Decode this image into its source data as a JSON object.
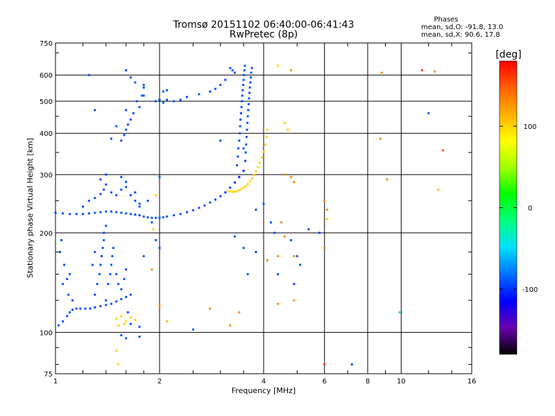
{
  "header": {
    "title": "Tromsø 20151102 06:40:00-06:41:43",
    "subtitle": "RwPretec (8p)"
  },
  "stats": {
    "heading": "Phases",
    "line_o": "mean, sd,O: -91.8, 13.0",
    "line_x": "mean, sd,X:  90.6, 17.8"
  },
  "colorbar": {
    "label": "[deg]",
    "ticks": [
      "100",
      "0",
      "-100"
    ],
    "tick_values": [
      100,
      0,
      -100
    ],
    "range": [
      -180,
      180
    ],
    "colormap": [
      "#000000",
      "#6a00b0",
      "#0000ff",
      "#0070ff",
      "#00e0ff",
      "#00ff80",
      "#00ff00",
      "#a0ff00",
      "#ffff00",
      "#ffb000",
      "#ff6000",
      "#ff0000"
    ]
  },
  "chart_data": {
    "type": "scatter",
    "title": "Tromsø 20151102 06:40:00-06:41:43",
    "subtitle": "RwPretec (8p)",
    "xlabel": "Frequency [MHz]",
    "ylabel": "Stationary phase Virtual Height [km]",
    "x_scale": "log",
    "y_scale": "log",
    "xlim": [
      1,
      16
    ],
    "ylim": [
      75,
      750
    ],
    "x_ticks": [
      1,
      2,
      4,
      6,
      8,
      10,
      16
    ],
    "x_tick_labels": [
      "1",
      "2",
      "4",
      "6",
      "8",
      "10",
      "16"
    ],
    "x_grid": [
      2,
      4,
      6,
      8,
      10
    ],
    "y_ticks": [
      75,
      100,
      200,
      300,
      400,
      500,
      600,
      750
    ],
    "y_tick_labels": [
      "75",
      "100",
      "200",
      "300",
      "400",
      "500",
      "600",
      "750"
    ],
    "y_grid": [
      100,
      200,
      300,
      400,
      500,
      600
    ],
    "grid": true,
    "color_dimension": "phase [deg]",
    "points": [
      [
        1.0,
        230,
        -95
      ],
      [
        1.05,
        229,
        -92
      ],
      [
        1.1,
        228,
        -90
      ],
      [
        1.15,
        228,
        -93
      ],
      [
        1.2,
        228,
        -91
      ],
      [
        1.25,
        229,
        -94
      ],
      [
        1.3,
        230,
        -90
      ],
      [
        1.35,
        231,
        -92
      ],
      [
        1.4,
        232,
        -91
      ],
      [
        1.45,
        232,
        -93
      ],
      [
        1.5,
        231,
        -92
      ],
      [
        1.55,
        230,
        -94
      ],
      [
        1.6,
        229,
        -90
      ],
      [
        1.65,
        228,
        -91
      ],
      [
        1.7,
        227,
        -92
      ],
      [
        1.75,
        226,
        -93
      ],
      [
        1.8,
        224,
        -91
      ],
      [
        1.85,
        223,
        -90
      ],
      [
        1.9,
        222,
        -92
      ],
      [
        1.95,
        222,
        -91
      ],
      [
        2.0,
        222,
        -90
      ],
      [
        2.05,
        223,
        -92
      ],
      [
        2.1,
        224,
        -91
      ],
      [
        2.2,
        226,
        -90
      ],
      [
        2.3,
        228,
        -92
      ],
      [
        2.4,
        231,
        -91
      ],
      [
        2.5,
        234,
        -93
      ],
      [
        2.6,
        238,
        -92
      ],
      [
        2.7,
        242,
        -90
      ],
      [
        2.8,
        247,
        -91
      ],
      [
        2.9,
        252,
        -94
      ],
      [
        3.0,
        258,
        -95
      ],
      [
        3.1,
        265,
        -98
      ],
      [
        3.2,
        274,
        -100
      ],
      [
        3.3,
        284,
        -105
      ],
      [
        3.4,
        295,
        -110
      ],
      [
        3.5,
        308,
        -104
      ],
      [
        3.15,
        268,
        100
      ],
      [
        3.2,
        267,
        102
      ],
      [
        3.25,
        266,
        98
      ],
      [
        3.3,
        266,
        101
      ],
      [
        3.35,
        267,
        99
      ],
      [
        3.4,
        269,
        103
      ],
      [
        3.45,
        271,
        100
      ],
      [
        3.5,
        274,
        102
      ],
      [
        3.55,
        277,
        98
      ],
      [
        3.6,
        281,
        101
      ],
      [
        3.65,
        286,
        99
      ],
      [
        3.7,
        292,
        103
      ],
      [
        3.75,
        299,
        100
      ],
      [
        3.8,
        307,
        102
      ],
      [
        3.85,
        316,
        98
      ],
      [
        3.9,
        326,
        101
      ],
      [
        3.95,
        338,
        99
      ],
      [
        4.0,
        352,
        103
      ],
      [
        4.05,
        370,
        100
      ],
      [
        4.08,
        390,
        102
      ],
      [
        4.1,
        410,
        98
      ],
      [
        3.35,
        320,
        -90
      ],
      [
        3.37,
        340,
        -92
      ],
      [
        3.38,
        360,
        -91
      ],
      [
        3.4,
        380,
        -93
      ],
      [
        3.41,
        400,
        -90
      ],
      [
        3.42,
        420,
        -92
      ],
      [
        3.43,
        440,
        -91
      ],
      [
        3.44,
        460,
        -94
      ],
      [
        3.45,
        480,
        -90
      ],
      [
        3.46,
        500,
        -92
      ],
      [
        3.47,
        520,
        -91
      ],
      [
        3.48,
        540,
        -93
      ],
      [
        3.49,
        560,
        -90
      ],
      [
        3.5,
        580,
        -92
      ],
      [
        3.51,
        600,
        -91
      ],
      [
        3.52,
        620,
        -93
      ],
      [
        3.53,
        640,
        -90
      ],
      [
        3.54,
        330,
        -95
      ],
      [
        3.55,
        350,
        -92
      ],
      [
        3.56,
        370,
        -90
      ],
      [
        3.57,
        390,
        -93
      ],
      [
        3.58,
        410,
        -91
      ],
      [
        3.59,
        430,
        -92
      ],
      [
        3.6,
        450,
        -90
      ],
      [
        3.61,
        470,
        -94
      ],
      [
        3.62,
        490,
        -91
      ],
      [
        3.63,
        510,
        -92
      ],
      [
        3.64,
        530,
        -93
      ],
      [
        3.65,
        550,
        -90
      ],
      [
        3.66,
        570,
        -91
      ],
      [
        3.67,
        590,
        -92
      ],
      [
        3.68,
        610,
        -90
      ],
      [
        3.7,
        630,
        -93
      ],
      [
        3.2,
        630,
        -92
      ],
      [
        3.25,
        620,
        -90
      ],
      [
        3.3,
        610,
        -93
      ],
      [
        3.0,
        560,
        -91
      ],
      [
        3.1,
        580,
        -92
      ],
      [
        2.9,
        545,
        -90
      ],
      [
        2.8,
        535,
        -93
      ],
      [
        2.6,
        525,
        -91
      ],
      [
        2.4,
        515,
        -92
      ],
      [
        2.3,
        505,
        -90
      ],
      [
        2.2,
        500,
        -88
      ],
      [
        2.1,
        505,
        -92
      ],
      [
        1.95,
        500,
        -91
      ],
      [
        2.0,
        505,
        -93
      ],
      [
        2.05,
        495,
        -90
      ],
      [
        2.05,
        535,
        -92
      ],
      [
        2.1,
        540,
        -94
      ],
      [
        1.8,
        520,
        -90
      ],
      [
        1.02,
        105,
        -92
      ],
      [
        1.05,
        108,
        -91
      ],
      [
        1.08,
        112,
        -93
      ],
      [
        1.1,
        115,
        -90
      ],
      [
        1.12,
        117,
        -92
      ],
      [
        1.15,
        118,
        -91
      ],
      [
        1.18,
        118,
        -90
      ],
      [
        1.22,
        118,
        -93
      ],
      [
        1.26,
        118,
        -91
      ],
      [
        1.3,
        119,
        -92
      ],
      [
        1.35,
        120,
        -90
      ],
      [
        1.4,
        121,
        -92
      ],
      [
        1.45,
        122,
        -91
      ],
      [
        1.5,
        124,
        -93
      ],
      [
        1.55,
        126,
        -90
      ],
      [
        1.6,
        128,
        -92
      ],
      [
        1.05,
        140,
        -91
      ],
      [
        1.08,
        145,
        -92
      ],
      [
        1.1,
        150,
        -90
      ],
      [
        1.06,
        160,
        -93
      ],
      [
        1.03,
        175,
        -91
      ],
      [
        1.04,
        190,
        -92
      ],
      [
        1.09,
        130,
        -90
      ],
      [
        1.12,
        125,
        -93
      ],
      [
        1.3,
        130,
        -92
      ],
      [
        1.32,
        140,
        -91
      ],
      [
        1.34,
        150,
        -90
      ],
      [
        1.35,
        160,
        -92
      ],
      [
        1.36,
        170,
        -93
      ],
      [
        1.37,
        180,
        -91
      ],
      [
        1.38,
        190,
        -90
      ],
      [
        1.38,
        200,
        -92
      ],
      [
        1.4,
        210,
        -91
      ],
      [
        1.42,
        140,
        -93
      ],
      [
        1.44,
        150,
        -92
      ],
      [
        1.45,
        160,
        -91
      ],
      [
        1.46,
        170,
        -90
      ],
      [
        1.47,
        180,
        -92
      ],
      [
        1.5,
        150,
        -91
      ],
      [
        1.52,
        140,
        -93
      ],
      [
        1.55,
        135,
        -92
      ],
      [
        1.58,
        145,
        -90
      ],
      [
        1.6,
        155,
        -91
      ],
      [
        1.65,
        130,
        -92
      ],
      [
        1.4,
        125,
        -90
      ],
      [
        1.28,
        160,
        -93
      ],
      [
        1.3,
        175,
        -91
      ],
      [
        1.2,
        240,
        -92
      ],
      [
        1.25,
        250,
        -91
      ],
      [
        1.3,
        255,
        -90
      ],
      [
        1.35,
        262,
        -93
      ],
      [
        1.38,
        270,
        -91
      ],
      [
        1.4,
        280,
        -92
      ],
      [
        1.45,
        265,
        -90
      ],
      [
        1.5,
        260,
        -91
      ],
      [
        1.55,
        270,
        -92
      ],
      [
        1.6,
        275,
        -90
      ],
      [
        1.65,
        260,
        -93
      ],
      [
        1.7,
        250,
        -91
      ],
      [
        1.75,
        245,
        -92
      ],
      [
        1.35,
        290,
        -92
      ],
      [
        1.4,
        300,
        -90
      ],
      [
        1.55,
        295,
        -91
      ],
      [
        1.6,
        285,
        -93
      ],
      [
        1.7,
        265,
        -91
      ],
      [
        1.55,
        380,
        -91
      ],
      [
        1.58,
        395,
        -92
      ],
      [
        1.6,
        410,
        -90
      ],
      [
        1.62,
        425,
        -93
      ],
      [
        1.65,
        440,
        -91
      ],
      [
        1.68,
        460,
        -92
      ],
      [
        1.6,
        470,
        -90
      ],
      [
        1.75,
        480,
        -92
      ],
      [
        1.72,
        500,
        -91
      ],
      [
        1.78,
        520,
        -90
      ],
      [
        1.8,
        550,
        -93
      ],
      [
        1.7,
        570,
        -91
      ],
      [
        1.65,
        590,
        -92
      ],
      [
        1.6,
        620,
        -90
      ],
      [
        1.3,
        470,
        -92
      ],
      [
        1.25,
        600,
        -91
      ],
      [
        1.5,
        420,
        -90
      ],
      [
        1.45,
        385,
        -93
      ],
      [
        1.8,
        560,
        -91
      ],
      [
        1.5,
        110,
        100
      ],
      [
        1.55,
        112,
        102
      ],
      [
        1.6,
        108,
        98
      ],
      [
        1.65,
        111,
        101
      ],
      [
        1.7,
        109,
        99
      ],
      [
        1.52,
        105,
        103
      ],
      [
        1.58,
        106,
        100
      ],
      [
        1.65,
        106,
        -90
      ],
      [
        1.75,
        104,
        -92
      ],
      [
        1.55,
        98,
        -91
      ],
      [
        1.6,
        96,
        -90
      ],
      [
        1.75,
        97,
        -93
      ],
      [
        1.62,
        115,
        -92
      ],
      [
        1.5,
        88,
        100
      ],
      [
        1.52,
        80,
        99
      ],
      [
        4.6,
        430,
        100
      ],
      [
        4.7,
        410,
        102
      ],
      [
        4.4,
        640,
        100
      ],
      [
        4.8,
        620,
        130
      ],
      [
        4.3,
        200,
        -92
      ],
      [
        4.2,
        215,
        -91
      ],
      [
        4.5,
        215,
        130
      ],
      [
        4.6,
        195,
        130
      ],
      [
        4.8,
        190,
        -91
      ],
      [
        4.1,
        165,
        130
      ],
      [
        4.4,
        170,
        130
      ],
      [
        4.9,
        170,
        130
      ],
      [
        5.1,
        160,
        -92
      ],
      [
        4.9,
        125,
        130
      ],
      [
        4.4,
        122,
        130
      ],
      [
        4.6,
        300,
        130
      ],
      [
        4.8,
        295,
        130
      ],
      [
        4.9,
        285,
        130
      ],
      [
        4.0,
        245,
        -90
      ],
      [
        3.8,
        235,
        -92
      ],
      [
        3.5,
        180,
        -91
      ],
      [
        3.6,
        150,
        -90
      ],
      [
        3.8,
        175,
        -92
      ],
      [
        3.4,
        115,
        130
      ],
      [
        3.2,
        105,
        130
      ],
      [
        2.8,
        118,
        130
      ],
      [
        2.5,
        102,
        -92
      ],
      [
        2.1,
        108,
        110
      ],
      [
        2.0,
        120,
        130
      ],
      [
        1.9,
        155,
        130
      ],
      [
        1.8,
        170,
        -91
      ],
      [
        2.0,
        180,
        -92
      ],
      [
        1.95,
        190,
        -90
      ],
      [
        2.0,
        295,
        -91
      ],
      [
        1.95,
        260,
        100
      ],
      [
        1.85,
        250,
        -92
      ],
      [
        1.75,
        240,
        -90
      ],
      [
        1.9,
        215,
        -92
      ],
      [
        1.92,
        205,
        100
      ],
      [
        6.0,
        80,
        160
      ],
      [
        6.0,
        250,
        130
      ],
      [
        6.1,
        235,
        130
      ],
      [
        6.0,
        180,
        130
      ],
      [
        6.1,
        220,
        100
      ],
      [
        7.2,
        80,
        -95
      ],
      [
        8.7,
        385,
        130
      ],
      [
        9.9,
        115,
        -10
      ],
      [
        11.5,
        620,
        160
      ],
      [
        12.5,
        615,
        130
      ],
      [
        13.2,
        355,
        150
      ],
      [
        12.8,
        270,
        110
      ],
      [
        12.0,
        460,
        -90
      ],
      [
        9.1,
        290,
        130
      ],
      [
        8.8,
        610,
        130
      ],
      [
        5.8,
        200,
        -92
      ],
      [
        5.4,
        205,
        -92
      ],
      [
        5.0,
        170,
        -90
      ],
      [
        4.9,
        140,
        -92
      ],
      [
        4.4,
        150,
        -91
      ],
      [
        3.0,
        380,
        -92
      ],
      [
        3.3,
        195,
        -90
      ],
      [
        3.5,
        360,
        -91
      ]
    ]
  }
}
